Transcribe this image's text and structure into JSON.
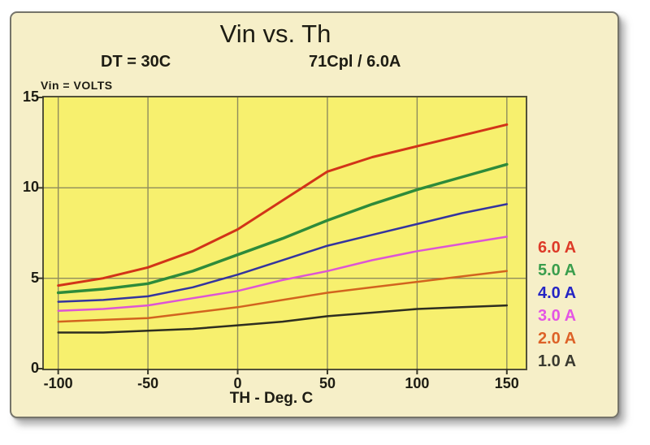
{
  "card": {
    "bg": "#f6efc8",
    "border_color": "#75746a"
  },
  "chart_data": {
    "type": "line",
    "title": "Vin vs. Th",
    "subtitle_left": "DT = 30C",
    "subtitle_right": "71Cpl / 6.0A",
    "y_unit_label": "Vin = VOLTS",
    "xlabel": "TH - Deg. C",
    "ylabel": "Vin (Volts)",
    "xlim": [
      -108,
      160.5
    ],
    "ylim": [
      0,
      15
    ],
    "xticks": [
      -100,
      -50,
      0,
      50,
      100,
      150
    ],
    "yticks": [
      0,
      5,
      10,
      15
    ],
    "grid": true,
    "legend_position": "right",
    "plot_bg": "#f7f06e",
    "grid_color": "#8f8d5c",
    "border_color": "#53523a",
    "tick_color": "#3a392a",
    "x": [
      -100,
      -75,
      -50,
      -25,
      0,
      25,
      50,
      75,
      100,
      125,
      150
    ],
    "series": [
      {
        "name": "6.0 A",
        "color": "#d23418",
        "legend_color": "#dd3a28",
        "width": 3,
        "values": [
          4.6,
          5.0,
          5.6,
          6.5,
          7.7,
          9.3,
          10.9,
          11.7,
          12.3,
          12.9,
          13.5
        ]
      },
      {
        "name": "5.0 A",
        "color": "#2e8b3a",
        "legend_color": "#3a9e4d",
        "width": 3.5,
        "values": [
          4.2,
          4.4,
          4.7,
          5.4,
          6.3,
          7.2,
          8.2,
          9.1,
          9.9,
          10.6,
          11.3
        ]
      },
      {
        "name": "4.0 A",
        "color": "#34349e",
        "legend_color": "#2525c4",
        "width": 2.5,
        "values": [
          3.7,
          3.8,
          4.0,
          4.5,
          5.2,
          6.0,
          6.8,
          7.4,
          8.0,
          8.6,
          9.1
        ]
      },
      {
        "name": "3.0 A",
        "color": "#dd55d5",
        "legend_color": "#e455e4",
        "width": 2.5,
        "values": [
          3.2,
          3.3,
          3.5,
          3.9,
          4.3,
          4.9,
          5.4,
          6.0,
          6.5,
          6.9,
          7.3
        ]
      },
      {
        "name": "2.0 A",
        "color": "#d2641e",
        "legend_color": "#dd6228",
        "width": 2.5,
        "values": [
          2.6,
          2.7,
          2.8,
          3.1,
          3.4,
          3.8,
          4.2,
          4.5,
          4.8,
          5.1,
          5.4
        ]
      },
      {
        "name": "1.0 A",
        "color": "#2e2e20",
        "legend_color": "#3a3a30",
        "width": 2.5,
        "values": [
          2.0,
          2.0,
          2.1,
          2.2,
          2.4,
          2.6,
          2.9,
          3.1,
          3.3,
          3.4,
          3.5
        ]
      }
    ]
  }
}
